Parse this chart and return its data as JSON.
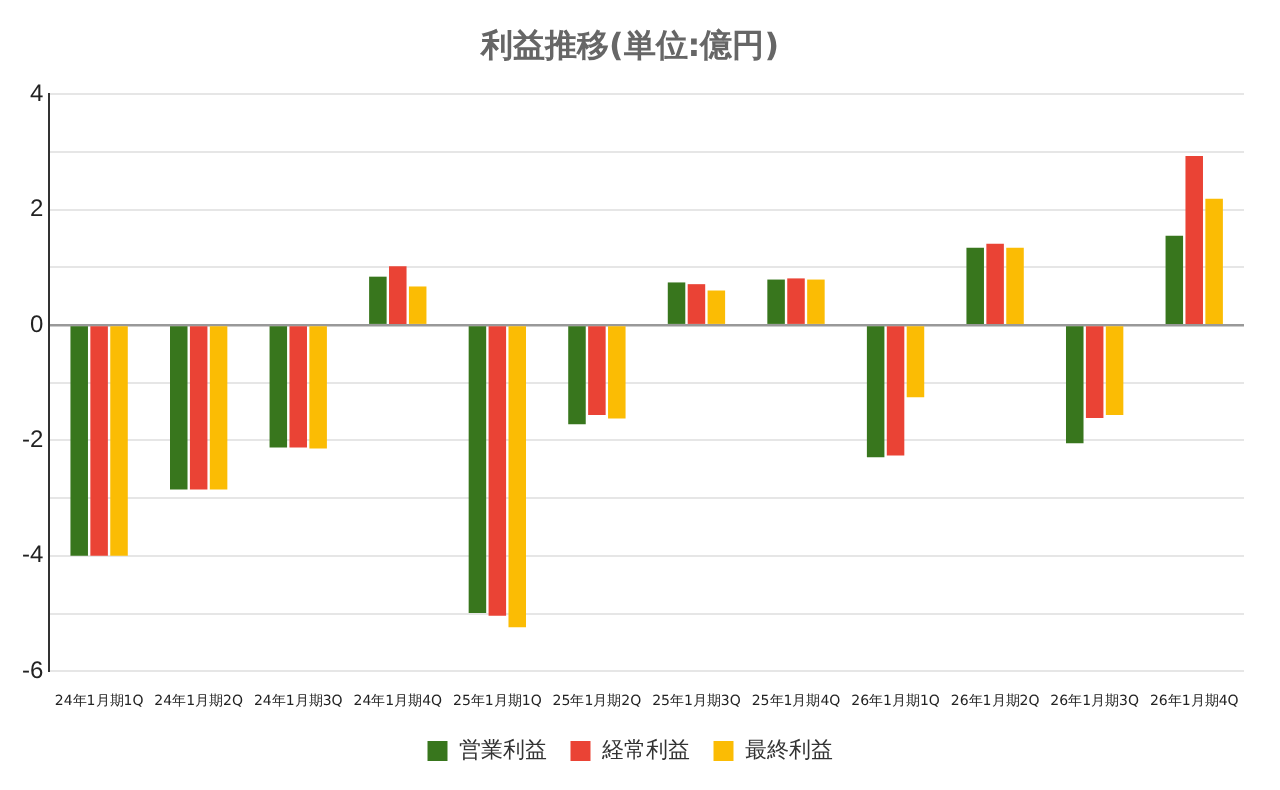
{
  "chart_data": {
    "type": "bar",
    "title": "利益推移(単位:億円)",
    "categories": [
      "24年1月期1Q",
      "24年1月期2Q",
      "24年1月期3Q",
      "24年1月期4Q",
      "25年1月期1Q",
      "25年1月期2Q",
      "25年1月期3Q",
      "25年1月期4Q",
      "26年1月期1Q",
      "26年1月期2Q",
      "26年1月期3Q",
      "26年1月期4Q"
    ],
    "series": [
      {
        "name": "営業利益",
        "color": "#38761d",
        "values": [
          -4.0,
          -2.85,
          -2.12,
          0.84,
          -4.99,
          -1.72,
          0.74,
          0.79,
          -2.29,
          1.34,
          -2.05,
          1.55
        ]
      },
      {
        "name": "経常利益",
        "color": "#ea4335",
        "values": [
          -4.0,
          -2.85,
          -2.12,
          1.02,
          -5.04,
          -1.56,
          0.71,
          0.81,
          -2.26,
          1.41,
          -1.61,
          2.93
        ]
      },
      {
        "name": "最終利益",
        "color": "#fbbc04",
        "values": [
          -4.0,
          -2.85,
          -2.14,
          0.67,
          -5.24,
          -1.62,
          0.6,
          0.79,
          -1.25,
          1.34,
          -1.56,
          2.19
        ]
      }
    ],
    "ylim": [
      -6,
      4
    ],
    "yticks": [
      -6,
      {
        "value": -5,
        "label": null
      },
      -4,
      {
        "value": -3,
        "label": null
      },
      -2,
      {
        "value": -1,
        "label": null
      },
      0,
      {
        "value": 1,
        "label": null
      },
      2,
      {
        "value": 3,
        "label": null
      },
      4
    ],
    "grid": "y",
    "legend": "bottom"
  }
}
